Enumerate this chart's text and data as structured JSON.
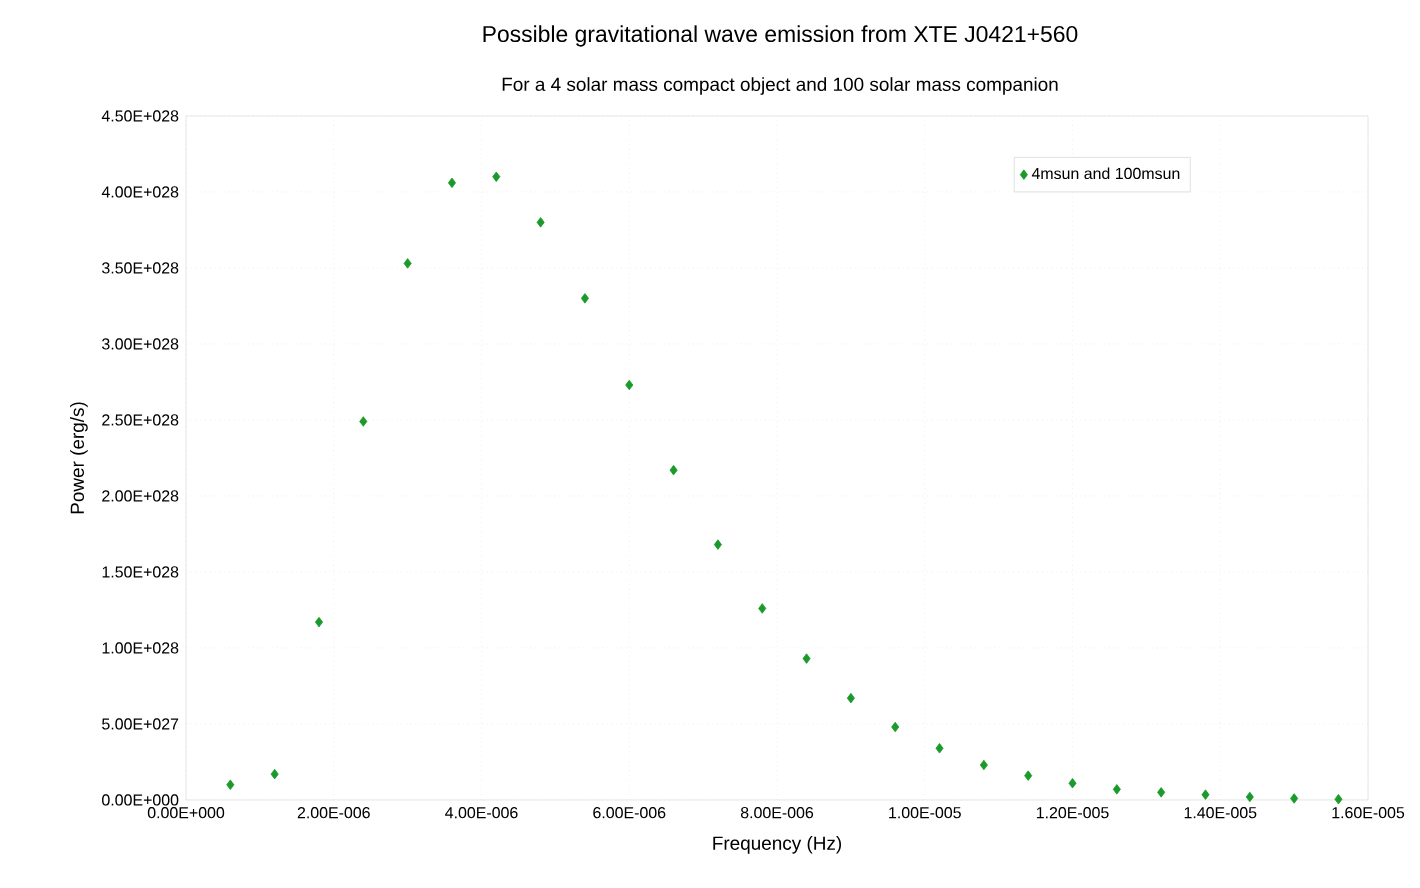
{
  "chart_data": {
    "type": "scatter",
    "title": "Possible gravitational wave emission from XTE J0421+560",
    "subtitle": "For a 4 solar mass compact object and 100 solar mass companion",
    "xlabel": "Frequency (Hz)",
    "ylabel": "Power (erg/s)",
    "x": [
      6e-07,
      1.2e-06,
      1.8e-06,
      2.4e-06,
      3e-06,
      3.6e-06,
      4.2e-06,
      4.8e-06,
      5.4e-06,
      6e-06,
      6.6e-06,
      7.2e-06,
      7.8e-06,
      8.4e-06,
      9e-06,
      9.6e-06,
      1.02e-05,
      1.08e-05,
      1.14e-05,
      1.2e-05,
      1.26e-05,
      1.32e-05,
      1.38e-05,
      1.44e-05,
      1.5e-05,
      1.56e-05
    ],
    "series": [
      {
        "name": "4msun and 100msun",
        "color": "#1a9a2a",
        "values": [
          1e+27,
          1.7e+27,
          1.17e+28,
          2.49e+28,
          3.53e+28,
          4.06e+28,
          4.1e+28,
          3.8e+28,
          3.3e+28,
          2.73e+28,
          2.17e+28,
          1.68e+28,
          1.26e+28,
          9.3e+27,
          6.7e+27,
          4.8e+27,
          3.4e+27,
          2.3e+27,
          1.6e+27,
          1.1e+27,
          7e+26,
          5e+26,
          3.5e+26,
          2e+26,
          1e+26,
          5e+25
        ]
      }
    ],
    "xlim": [
      0,
      1.6e-05
    ],
    "xticks": [
      {
        "value": 0,
        "label": "0.00E+000"
      },
      {
        "value": 2e-06,
        "label": "2.00E-006"
      },
      {
        "value": 4e-06,
        "label": "4.00E-006"
      },
      {
        "value": 6e-06,
        "label": "6.00E-006"
      },
      {
        "value": 8e-06,
        "label": "8.00E-006"
      },
      {
        "value": 1e-05,
        "label": "1.00E-005"
      },
      {
        "value": 1.2e-05,
        "label": "1.20E-005"
      },
      {
        "value": 1.4e-05,
        "label": "1.40E-005"
      },
      {
        "value": 1.6e-05,
        "label": "1.60E-005"
      }
    ],
    "ylim": [
      0,
      4.5e+28
    ],
    "yticks": [
      {
        "value": 0,
        "label": "0.00E+000"
      },
      {
        "value": 5e+27,
        "label": "5.00E+027"
      },
      {
        "value": 1e+28,
        "label": "1.00E+028"
      },
      {
        "value": 1.5e+28,
        "label": "1.50E+028"
      },
      {
        "value": 2e+28,
        "label": "2.00E+028"
      },
      {
        "value": 2.5e+28,
        "label": "2.50E+028"
      },
      {
        "value": 3e+28,
        "label": "3.00E+028"
      },
      {
        "value": 3.5e+28,
        "label": "3.50E+028"
      },
      {
        "value": 4e+28,
        "label": "4.00E+028"
      },
      {
        "value": 4.5e+28,
        "label": "4.50E+028"
      }
    ],
    "grid": true,
    "legend": "top right",
    "marker": "diamond"
  }
}
